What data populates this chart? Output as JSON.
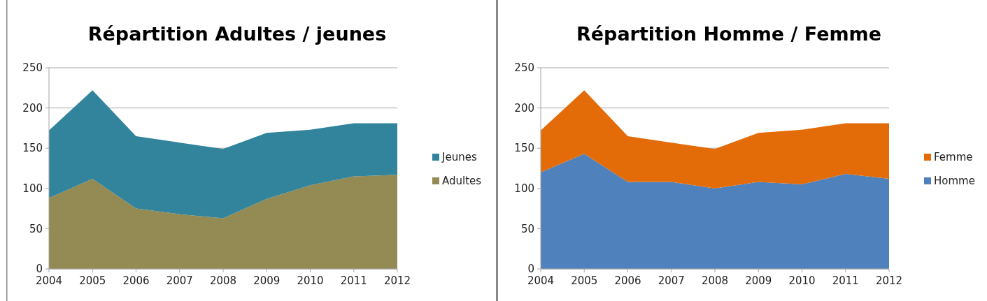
{
  "chart_data": [
    {
      "type": "area",
      "title": "Répartition Adultes / jeunes",
      "stacked": true,
      "categories": [
        "2004",
        "2005",
        "2006",
        "2007",
        "2008",
        "2009",
        "2010",
        "2011",
        "2012"
      ],
      "ylim": [
        0,
        250
      ],
      "yticks": [
        0,
        50,
        100,
        150,
        200,
        250
      ],
      "grid": "y",
      "legend": "right",
      "series": [
        {
          "name": "Adultes",
          "color": "#948a54",
          "values": [
            88,
            112,
            75,
            68,
            63,
            87,
            104,
            115,
            117
          ]
        },
        {
          "name": "Jeunes",
          "color": "#31849b",
          "values": [
            84,
            110,
            90,
            89,
            86,
            82,
            69,
            66,
            64
          ]
        }
      ]
    },
    {
      "type": "area",
      "title": "Répartition Homme / Femme",
      "stacked": true,
      "categories": [
        "2004",
        "2005",
        "2006",
        "2007",
        "2008",
        "2009",
        "2010",
        "2011",
        "2012"
      ],
      "ylim": [
        0,
        250
      ],
      "yticks": [
        0,
        50,
        100,
        150,
        200,
        250
      ],
      "grid": "y",
      "legend": "right",
      "series": [
        {
          "name": "Homme",
          "color": "#4f81bd",
          "values": [
            120,
            143,
            108,
            108,
            100,
            108,
            105,
            118,
            112
          ]
        },
        {
          "name": "Femme",
          "color": "#e36c09",
          "values": [
            52,
            79,
            57,
            49,
            49,
            61,
            68,
            63,
            69
          ]
        }
      ]
    }
  ]
}
